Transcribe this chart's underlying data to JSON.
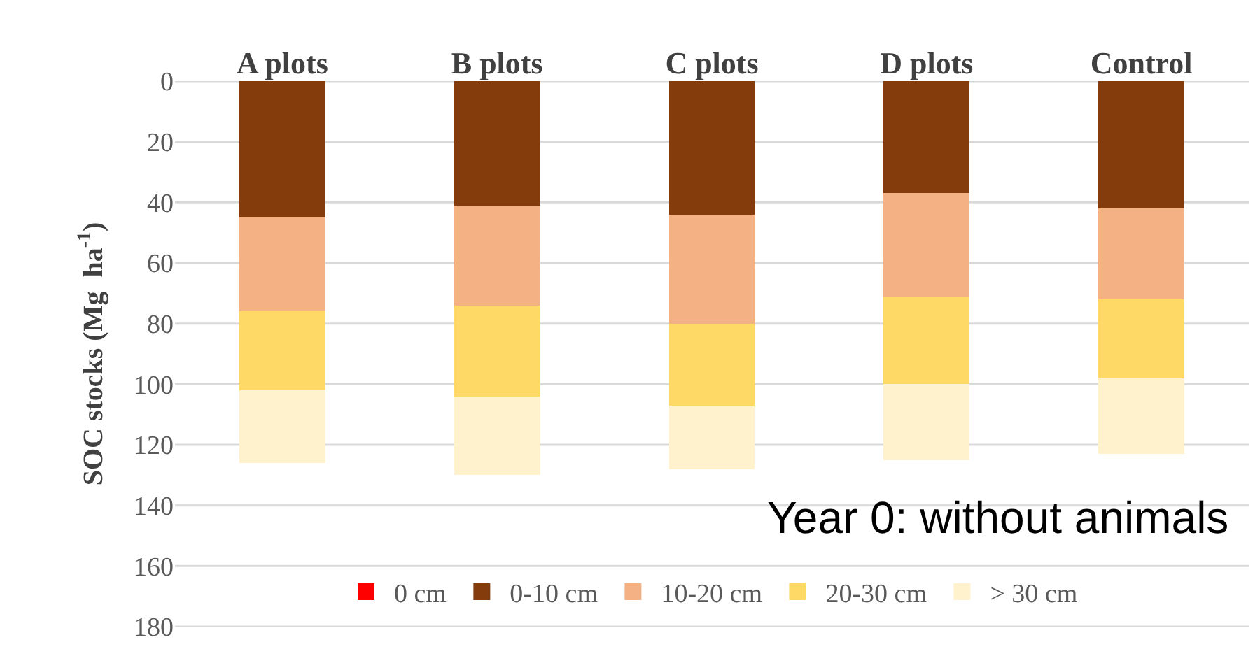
{
  "chart_data": {
    "type": "bar",
    "stacked": true,
    "ylabel": "SOC stocks (Mg  ha$^{-1}$)",
    "categories": [
      "A plots",
      "B plots",
      "C plots",
      "D plots",
      "Control"
    ],
    "series": [
      {
        "name": "0 cm",
        "color": "#ff0000",
        "values": [
          0,
          0,
          0,
          0,
          0
        ]
      },
      {
        "name": "0-10 cm",
        "color": "#843c0c",
        "values": [
          45,
          41,
          44,
          37,
          42
        ]
      },
      {
        "name": "10-20 cm",
        "color": "#f4b183",
        "values": [
          31,
          33,
          36,
          34,
          30
        ]
      },
      {
        "name": "20-30 cm",
        "color": "#ffd966",
        "values": [
          26,
          30,
          27,
          29,
          26
        ]
      },
      {
        "name": "> 30 cm",
        "color": "#fff2cc",
        "values": [
          24,
          26,
          21,
          25,
          25
        ]
      }
    ],
    "ylim": [
      180,
      0
    ],
    "yticks": [
      0,
      20,
      40,
      60,
      80,
      100,
      120,
      140,
      160,
      180
    ],
    "grid": "y",
    "legend": "bottom",
    "annotations": [
      "Year 0: without animals"
    ]
  }
}
